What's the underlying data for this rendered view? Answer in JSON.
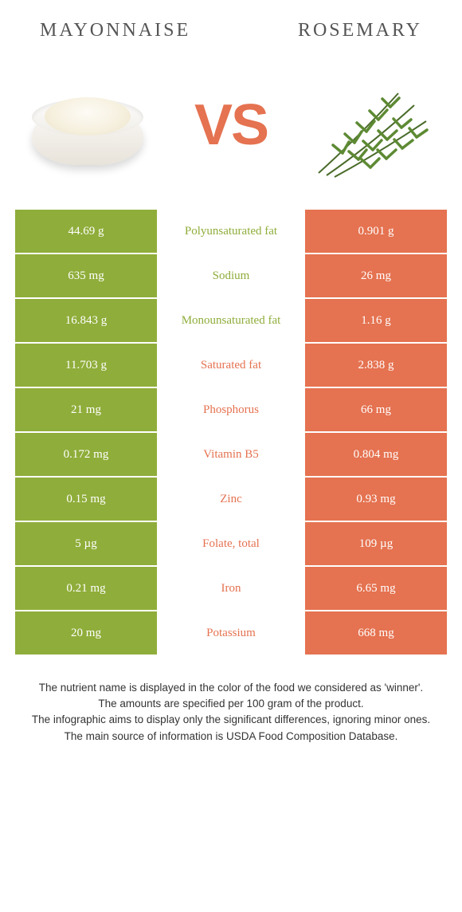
{
  "header": {
    "left_title": "MAYONNAISE",
    "right_title": "ROSEMARY",
    "vs_label": "VS"
  },
  "colors": {
    "left": "#8fad3a",
    "right": "#e57250",
    "mid_bg": "#ffffff",
    "title_text": "#555555"
  },
  "table": {
    "rows": [
      {
        "left": "44.69 g",
        "mid": "Polyunsaturated fat",
        "right": "0.901 g",
        "winner": "left"
      },
      {
        "left": "635 mg",
        "mid": "Sodium",
        "right": "26 mg",
        "winner": "left"
      },
      {
        "left": "16.843 g",
        "mid": "Monounsaturated fat",
        "right": "1.16 g",
        "winner": "left"
      },
      {
        "left": "11.703 g",
        "mid": "Saturated fat",
        "right": "2.838 g",
        "winner": "right"
      },
      {
        "left": "21 mg",
        "mid": "Phosphorus",
        "right": "66 mg",
        "winner": "right"
      },
      {
        "left": "0.172 mg",
        "mid": "Vitamin B5",
        "right": "0.804 mg",
        "winner": "right"
      },
      {
        "left": "0.15 mg",
        "mid": "Zinc",
        "right": "0.93 mg",
        "winner": "right"
      },
      {
        "left": "5 µg",
        "mid": "Folate, total",
        "right": "109 µg",
        "winner": "right"
      },
      {
        "left": "0.21 mg",
        "mid": "Iron",
        "right": "6.65 mg",
        "winner": "right"
      },
      {
        "left": "20 mg",
        "mid": "Potassium",
        "right": "668 mg",
        "winner": "right"
      }
    ]
  },
  "footer": {
    "lines": [
      "The nutrient name is displayed in the color of the food we considered as 'winner'.",
      "The amounts are specified per 100 gram of the product.",
      "The infographic aims to display only the significant differences, ignoring minor ones.",
      "The main source of information is USDA Food Composition Database."
    ]
  }
}
